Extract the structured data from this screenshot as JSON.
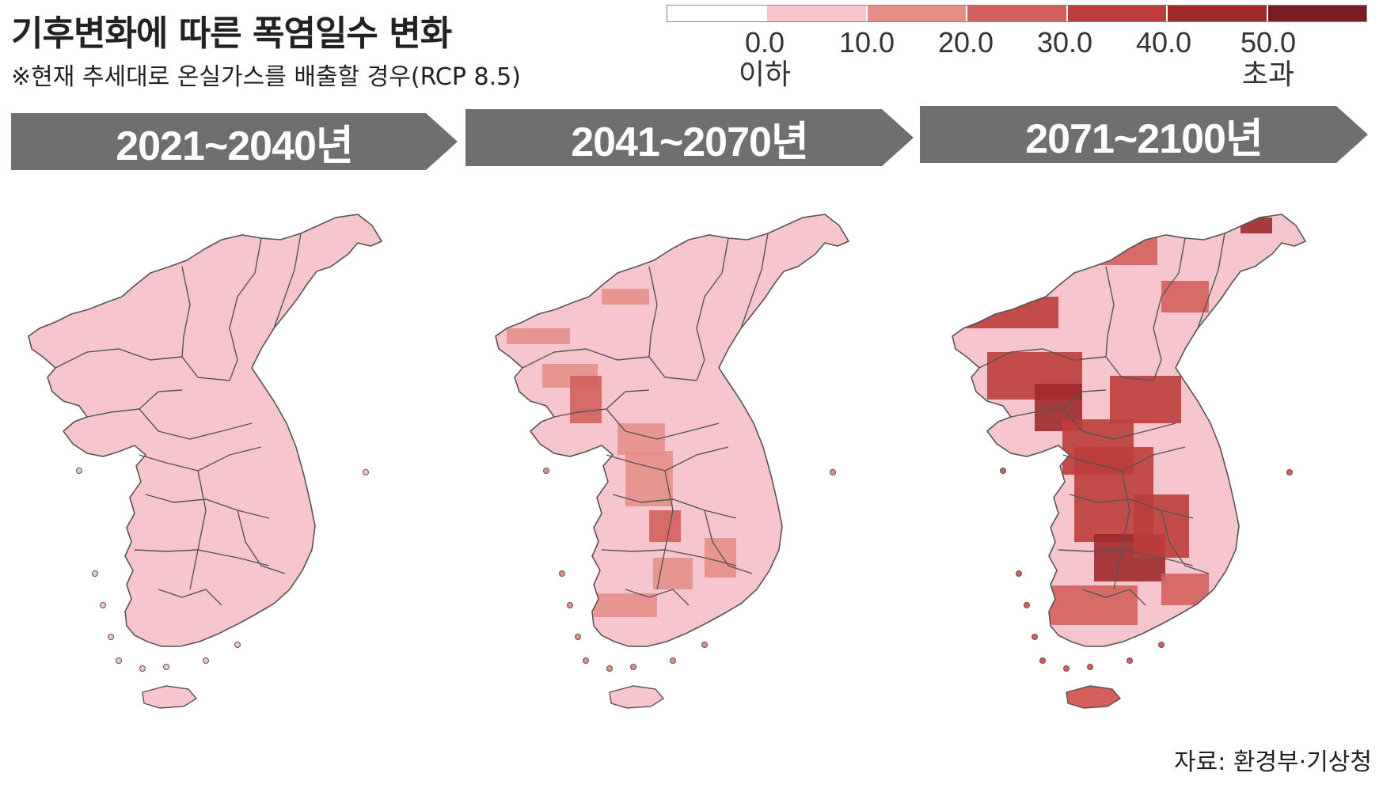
{
  "title": "기후변화에 따른 폭염일수 변화",
  "subtitle": "※현재 추세대로 온실가스를 배출할 경우(RCP 8.5)",
  "legend": {
    "colors": [
      "#ffffff",
      "#f6c6cc",
      "#e58f89",
      "#d3605c",
      "#bc3e3c",
      "#9e2a2c",
      "#7a1d22"
    ],
    "ticks": [
      {
        "value": "0.0",
        "sub": "이하"
      },
      {
        "value": "10.0",
        "sub": ""
      },
      {
        "value": "20.0",
        "sub": ""
      },
      {
        "value": "30.0",
        "sub": ""
      },
      {
        "value": "40.0",
        "sub": ""
      },
      {
        "value": "50.0",
        "sub": "초과"
      }
    ]
  },
  "periods": [
    {
      "label": "2021~2040년",
      "level": 0
    },
    {
      "label": "2041~2070년",
      "level": 1
    },
    {
      "label": "2071~2100년",
      "level": 2
    }
  ],
  "source": "자료: 환경부·기상청"
}
